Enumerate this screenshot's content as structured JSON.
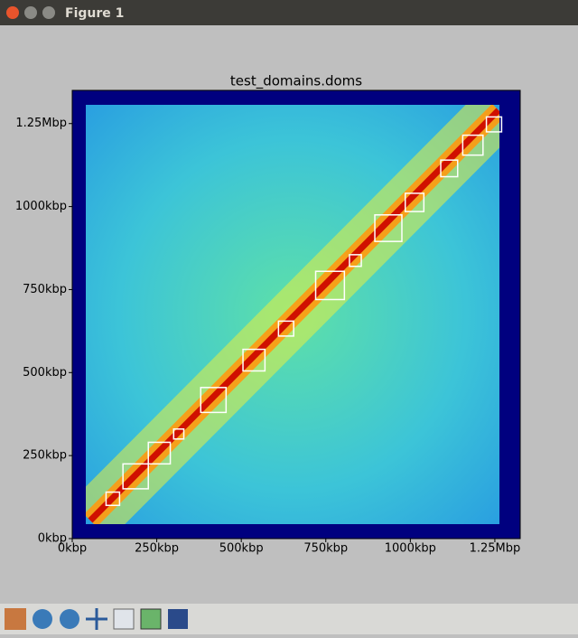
{
  "window": {
    "title": "Figure 1"
  },
  "chart_data": {
    "type": "heatmap",
    "title": "test_domains.doms",
    "xlim": [
      0,
      1325
    ],
    "ylim": [
      0,
      1350
    ],
    "xticks": [
      {
        "value": 0,
        "label": "0kbp"
      },
      {
        "value": 250,
        "label": "250kbp"
      },
      {
        "value": 500,
        "label": "500kbp"
      },
      {
        "value": 750,
        "label": "750kbp"
      },
      {
        "value": 1000,
        "label": "1000kbp"
      },
      {
        "value": 1250,
        "label": "1.25Mbp"
      }
    ],
    "yticks": [
      {
        "value": 0,
        "label": "0kbp"
      },
      {
        "value": 250,
        "label": "250kbp"
      },
      {
        "value": 500,
        "label": "500kbp"
      },
      {
        "value": 750,
        "label": "750kbp"
      },
      {
        "value": 1000,
        "label": "1000kbp"
      },
      {
        "value": 1250,
        "label": "1.25Mbp"
      }
    ],
    "domain_color": "#ffffff",
    "domains": [
      {
        "start": 100,
        "end": 140
      },
      {
        "start": 150,
        "end": 225
      },
      {
        "start": 225,
        "end": 290
      },
      {
        "start": 300,
        "end": 330
      },
      {
        "start": 380,
        "end": 455
      },
      {
        "start": 505,
        "end": 570
      },
      {
        "start": 610,
        "end": 655
      },
      {
        "start": 720,
        "end": 805
      },
      {
        "start": 820,
        "end": 855
      },
      {
        "start": 895,
        "end": 975
      },
      {
        "start": 985,
        "end": 1040
      },
      {
        "start": 1090,
        "end": 1140
      },
      {
        "start": 1155,
        "end": 1215
      },
      {
        "start": 1225,
        "end": 1270
      }
    ]
  }
}
